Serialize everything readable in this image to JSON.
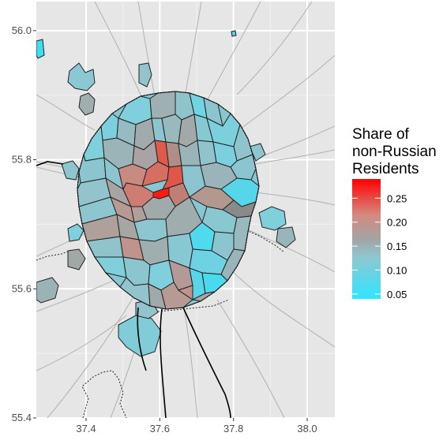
{
  "chart_data": {
    "type": "choropleth",
    "legend": {
      "title_lines": [
        "Share of",
        "non-Russian",
        "Residents"
      ],
      "ticks": [
        0.05,
        0.1,
        0.15,
        0.2,
        0.25
      ],
      "tick_labels": [
        "0.05",
        "0.10",
        "0.15",
        "0.20",
        "0.25"
      ],
      "range": [
        0.04,
        0.29
      ],
      "colors": {
        "low": "#2ee6ff",
        "mid": "#999999",
        "high": "#ff0000"
      },
      "position": "right"
    },
    "x_axis": {
      "ticks": [
        37.4,
        37.6,
        37.8,
        38.0
      ],
      "tick_labels": [
        "37.4",
        "37.6",
        "37.8",
        "38.0"
      ],
      "range": [
        37.265,
        38.075
      ]
    },
    "y_axis": {
      "ticks": [
        55.4,
        55.6,
        55.8,
        56.0
      ],
      "tick_labels": [
        "55.4",
        "55.6",
        "55.8",
        "56.0"
      ],
      "range": [
        55.4,
        56.045
      ]
    },
    "panel_background": "#e6e6e6",
    "grid": true
  }
}
